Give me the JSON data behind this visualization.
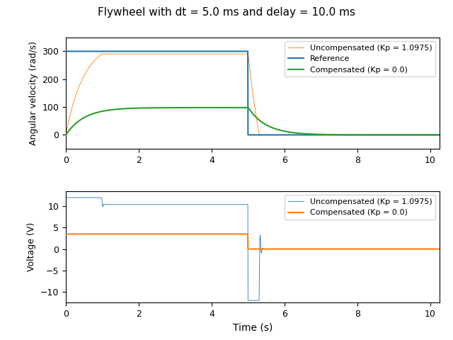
{
  "title": "Flywheel with dt = 5.0 ms and delay = 10.0 ms",
  "dt": 0.005,
  "delay": 0.01,
  "t_end": 10.26,
  "ref_on": 0.0,
  "ref_off": 5.0,
  "ref_val": 300.0,
  "Kp_uncomp": 1.0975,
  "V_max": 12.0,
  "V_comp_on": 3.5,
  "V_comp_off": 0.0,
  "tau": 0.5,
  "K_plant": 28.0,
  "xlabel": "Time (s)",
  "ylabel_vel": "Angular velocity (rad/s)",
  "ylabel_volt": "Voltage (V)",
  "color_ref": "#1f77b4",
  "color_uncomp": "#ff7f0e",
  "color_comp": "#2ca02c",
  "legend1": [
    "Reference",
    "Uncompensated (Kp = 1.0975)",
    "Compensated (Kp = 0.0)"
  ],
  "legend2": [
    "Uncompensated (Kp = 1.0975)",
    "Compensated (Kp = 0.0)"
  ],
  "xlim": [
    0,
    10.25
  ],
  "ylim_vel": [
    -50,
    350
  ],
  "ylim_volt": [
    -12.5,
    13.5
  ],
  "xticks": [
    0,
    2,
    4,
    6,
    8,
    10
  ],
  "figsize": [
    6.4,
    4.8
  ],
  "dpi": 100,
  "title_fontsize": 11,
  "label_fontsize": 9,
  "legend_fontsize": 8,
  "xlabel_fontsize": 10
}
